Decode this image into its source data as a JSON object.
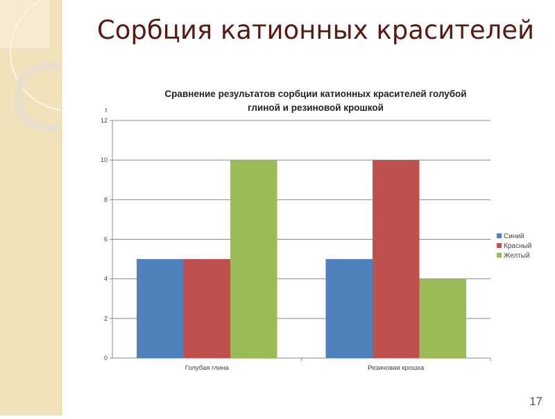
{
  "slide": {
    "title": "Сорбция катионных красителей",
    "page_number": "17"
  },
  "chart_data": {
    "type": "bar",
    "title_lines": [
      "Сравнение результатов сорбции катионных красителей голубой",
      "глиной и резиновой крошкой"
    ],
    "ylabel": "t",
    "xlabel": "",
    "categories": [
      "Голубая глина",
      "Резиновая крошка"
    ],
    "series": [
      {
        "name": "Синий",
        "color": "#4f81bd",
        "values": [
          5,
          5
        ]
      },
      {
        "name": "Красный",
        "color": "#c0504d",
        "values": [
          5,
          10
        ]
      },
      {
        "name": "Желтый",
        "color": "#9bbb59",
        "values": [
          10,
          4
        ]
      }
    ],
    "ylim": [
      0,
      12
    ],
    "yticks": [
      0,
      2,
      4,
      6,
      8,
      10,
      12
    ],
    "grid": true,
    "legend": "right"
  }
}
